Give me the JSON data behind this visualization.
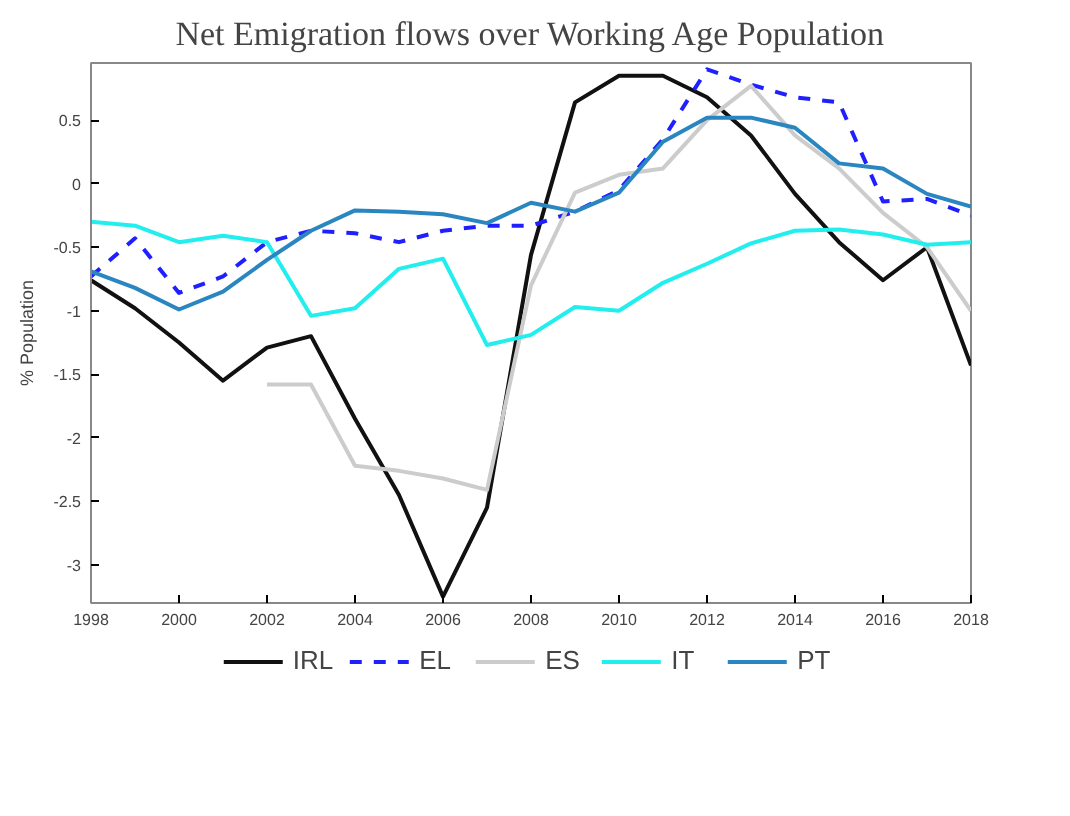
{
  "chart_data": {
    "type": "line",
    "title": "Net Emigration flows over Working Age Population",
    "ylabel": "% Population",
    "x": [
      1998,
      1999,
      2000,
      2001,
      2002,
      2003,
      2004,
      2005,
      2006,
      2007,
      2008,
      2009,
      2010,
      2011,
      2012,
      2013,
      2014,
      2015,
      2016,
      2017,
      2018
    ],
    "series": [
      {
        "name": "IRL",
        "color": "#111111",
        "line_style": "solid",
        "values": [
          -0.76,
          -0.98,
          -1.25,
          -1.55,
          -1.29,
          -1.2,
          -1.85,
          -2.45,
          -3.25,
          -2.55,
          -0.56,
          0.64,
          0.85,
          0.85,
          0.68,
          0.38,
          -0.08,
          -0.46,
          -0.76,
          -0.5,
          -1.43
        ]
      },
      {
        "name": "EL",
        "color": "#2020ff",
        "line_style": "dashed",
        "values": [
          -0.73,
          -0.43,
          -0.86,
          -0.73,
          -0.46,
          -0.37,
          -0.39,
          -0.46,
          -0.37,
          -0.33,
          -0.33,
          -0.22,
          -0.05,
          0.35,
          0.9,
          0.78,
          0.68,
          0.64,
          -0.14,
          -0.12,
          -0.25
        ]
      },
      {
        "name": "ES",
        "color": "#cccccc",
        "line_style": "solid",
        "values": [
          null,
          null,
          null,
          null,
          -1.58,
          -1.58,
          -2.22,
          -2.26,
          -2.32,
          -2.41,
          -0.8,
          -0.07,
          0.07,
          0.12,
          0.5,
          0.77,
          0.38,
          0.12,
          -0.23,
          -0.5,
          -1.0
        ]
      },
      {
        "name": "IT",
        "color": "#22eeee",
        "line_style": "solid",
        "values": [
          -0.3,
          -0.33,
          -0.46,
          -0.41,
          -0.46,
          -1.04,
          -0.98,
          -0.67,
          -0.59,
          -1.27,
          -1.19,
          -0.97,
          -1.0,
          -0.78,
          -0.63,
          -0.47,
          -0.37,
          -0.36,
          -0.4,
          -0.48,
          -0.46
        ]
      },
      {
        "name": "PT",
        "color": "#2a86c0",
        "line_style": "solid",
        "values": [
          -0.69,
          -0.82,
          -0.99,
          -0.85,
          -0.6,
          -0.37,
          -0.21,
          -0.22,
          -0.24,
          -0.31,
          -0.15,
          -0.22,
          -0.07,
          0.33,
          0.52,
          0.52,
          0.44,
          0.16,
          0.12,
          -0.08,
          -0.18
        ]
      }
    ],
    "xlim": [
      1998,
      2018
    ],
    "xticks": [
      1998,
      2000,
      2002,
      2004,
      2006,
      2008,
      2010,
      2012,
      2014,
      2016,
      2018
    ],
    "ylim": [
      -3.3,
      0.95
    ],
    "yticks": [
      -3,
      -2.5,
      -2,
      -1.5,
      -1,
      -0.5,
      0,
      0.5
    ],
    "grid": false,
    "legend": "bottom",
    "marker": "none"
  }
}
